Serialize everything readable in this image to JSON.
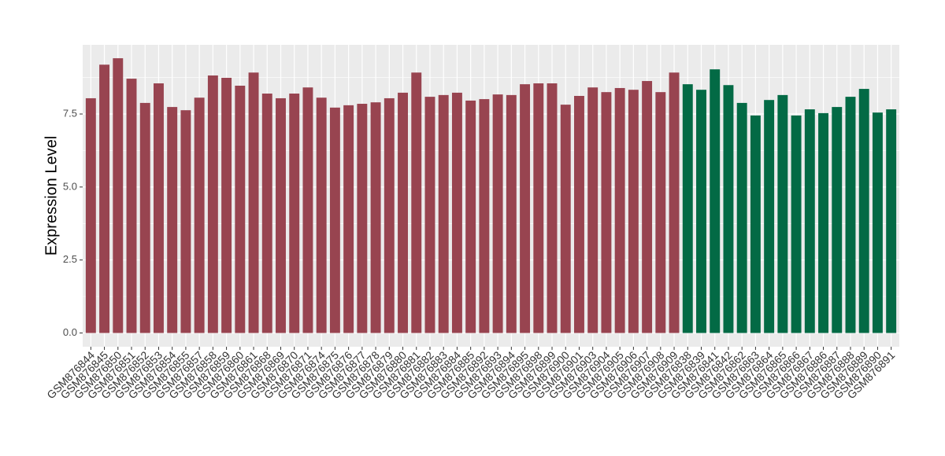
{
  "chart_data": {
    "type": "bar",
    "y_label": "Expression Level",
    "categories": [
      "GSM876844",
      "GSM876845",
      "GSM876850",
      "GSM876851",
      "GSM876852",
      "GSM876853",
      "GSM876854",
      "GSM876855",
      "GSM876857",
      "GSM876858",
      "GSM876859",
      "GSM876860",
      "GSM876861",
      "GSM876868",
      "GSM876869",
      "GSM876870",
      "GSM876871",
      "GSM876874",
      "GSM876875",
      "GSM876876",
      "GSM876877",
      "GSM876878",
      "GSM876879",
      "GSM876880",
      "GSM876881",
      "GSM876882",
      "GSM876883",
      "GSM876884",
      "GSM876885",
      "GSM876892",
      "GSM876893",
      "GSM876894",
      "GSM876895",
      "GSM876898",
      "GSM876899",
      "GSM876900",
      "GSM876901",
      "GSM876903",
      "GSM876904",
      "GSM876905",
      "GSM876906",
      "GSM876907",
      "GSM876908",
      "GSM876909",
      "GSM876838",
      "GSM876839",
      "GSM876841",
      "GSM876842",
      "GSM876862",
      "GSM876863",
      "GSM876864",
      "GSM876865",
      "GSM876866",
      "GSM876867",
      "GSM876886",
      "GSM876887",
      "GSM876888",
      "GSM876889",
      "GSM876890",
      "GSM876891"
    ],
    "values": [
      8.04,
      9.19,
      9.41,
      8.71,
      7.88,
      8.55,
      7.74,
      7.63,
      8.06,
      8.82,
      8.74,
      8.47,
      8.92,
      8.2,
      8.04,
      8.2,
      8.41,
      8.06,
      7.72,
      7.8,
      7.85,
      7.9,
      8.04,
      8.23,
      8.92,
      8.09,
      8.15,
      8.23,
      7.96,
      8.01,
      8.17,
      8.15,
      8.52,
      8.55,
      8.55,
      7.82,
      8.12,
      8.41,
      8.25,
      8.39,
      8.33,
      8.63,
      8.25,
      8.92,
      8.52,
      8.33,
      9.03,
      8.49,
      7.88,
      7.45,
      7.98,
      8.15,
      7.45,
      7.66,
      7.53,
      7.74,
      8.09,
      8.36,
      7.55,
      7.66
    ],
    "bar_colors": [
      "#984450",
      "#984450",
      "#984450",
      "#984450",
      "#984450",
      "#984450",
      "#984450",
      "#984450",
      "#984450",
      "#984450",
      "#984450",
      "#984450",
      "#984450",
      "#984450",
      "#984450",
      "#984450",
      "#984450",
      "#984450",
      "#984450",
      "#984450",
      "#984450",
      "#984450",
      "#984450",
      "#984450",
      "#984450",
      "#984450",
      "#984450",
      "#984450",
      "#984450",
      "#984450",
      "#984450",
      "#984450",
      "#984450",
      "#984450",
      "#984450",
      "#984450",
      "#984450",
      "#984450",
      "#984450",
      "#984450",
      "#984450",
      "#984450",
      "#984450",
      "#984450",
      "#036A45",
      "#036A45",
      "#036A45",
      "#036A45",
      "#036A45",
      "#036A45",
      "#036A45",
      "#036A45",
      "#036A45",
      "#036A45",
      "#036A45",
      "#036A45",
      "#036A45",
      "#036A45",
      "#036A45",
      "#036A45"
    ],
    "ylim": [
      -0.47,
      9.87
    ],
    "yticks": [
      {
        "value": 0,
        "label": "0.0"
      },
      2.5,
      {
        "value": 5,
        "label": "5.0"
      },
      7.5
    ],
    "minor_yticks": [
      1.25,
      3.75,
      6.25,
      8.75
    ],
    "grid": true
  }
}
